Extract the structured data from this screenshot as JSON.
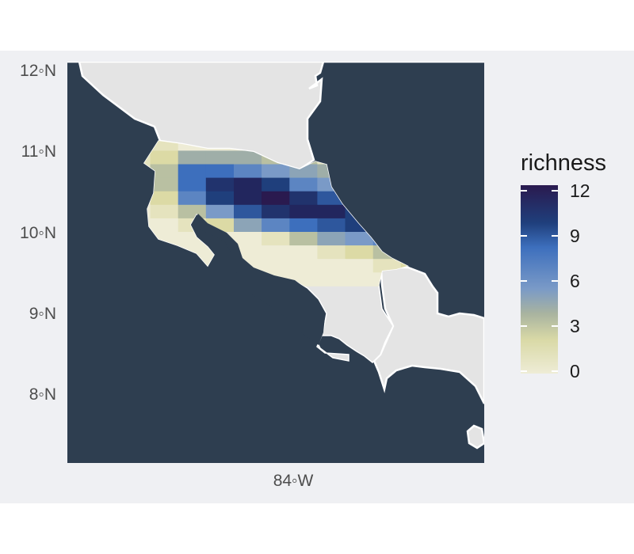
{
  "map": {
    "y_axis_labels": [
      "12◦N",
      "11◦N",
      "10◦N",
      "9◦N",
      "8◦N"
    ],
    "x_axis_labels": [
      "84◦W"
    ],
    "colors": {
      "ocean": "#2e3e50",
      "land": "#e4e4e4",
      "background": "#eff0f3",
      "coast": "#ffffff"
    }
  },
  "legend": {
    "title": "richness",
    "ticks": [
      "12",
      "9",
      "6",
      "3",
      "0"
    ]
  },
  "chart_data": {
    "type": "heatmap",
    "title": "",
    "legend_title": "richness",
    "colorbar_range": [
      0,
      13
    ],
    "colorbar_ticks": [
      0,
      3,
      6,
      9,
      12
    ],
    "x_ticks": [
      "84◦W"
    ],
    "y_ticks": [
      "8◦N",
      "9◦N",
      "10◦N",
      "11◦N",
      "12◦N"
    ],
    "cell_size_deg": 0.167,
    "lon_start": -85.67,
    "lat_start": 11.17,
    "rows": [
      [
        1,
        1,
        0,
        0,
        0,
        0,
        0,
        0,
        0,
        0,
        0,
        0,
        0,
        0,
        0,
        0,
        0
      ],
      [
        1,
        2,
        4,
        4,
        4,
        3,
        3,
        1,
        0,
        0,
        0,
        0,
        0,
        0,
        0,
        0,
        0
      ],
      [
        1,
        3,
        8,
        8,
        7,
        6,
        5,
        4,
        2,
        0,
        0,
        0,
        0,
        0,
        0,
        0,
        0
      ],
      [
        1,
        3,
        8,
        11,
        12,
        10,
        7,
        6,
        5,
        3,
        1,
        0,
        0,
        0,
        0,
        0,
        0
      ],
      [
        0,
        2,
        7,
        10,
        12,
        13,
        11,
        9,
        7,
        5,
        3,
        2,
        1,
        0,
        0,
        0,
        0
      ],
      [
        0,
        1,
        3,
        6,
        9,
        11,
        12,
        12,
        10,
        8,
        6,
        4,
        2,
        1,
        0,
        0,
        0
      ],
      [
        0,
        0,
        1,
        2,
        5,
        7,
        8,
        9,
        10,
        9,
        8,
        6,
        4,
        3,
        0,
        0,
        0
      ],
      [
        0,
        0,
        0,
        0,
        0,
        1,
        3,
        5,
        6,
        7,
        7,
        6,
        5,
        3,
        0,
        0,
        0
      ],
      [
        0,
        0,
        0,
        0,
        0,
        0,
        0,
        1,
        2,
        3,
        4,
        4,
        3,
        2,
        0,
        0,
        0
      ],
      [
        0,
        0,
        0,
        0,
        0,
        0,
        0,
        0,
        0,
        1,
        2,
        2,
        2,
        1,
        0,
        0,
        0
      ],
      [
        0,
        0,
        0,
        0,
        0,
        0,
        0,
        0,
        0,
        0,
        0,
        1,
        1,
        1,
        0,
        0,
        0
      ]
    ]
  }
}
